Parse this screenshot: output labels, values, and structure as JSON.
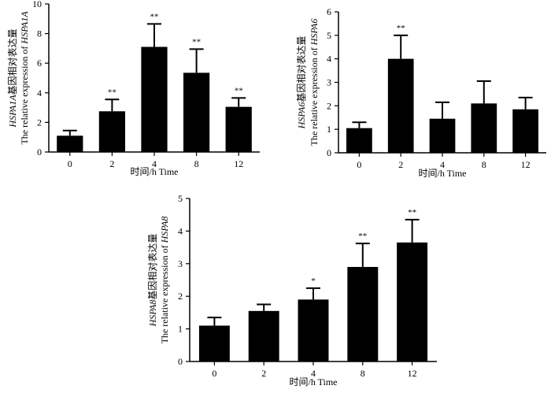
{
  "chart_data": [
    {
      "id": "hsp1a",
      "type": "bar",
      "categories": [
        "0",
        "2",
        "4",
        "8",
        "12"
      ],
      "values": [
        1.1,
        2.75,
        7.1,
        5.35,
        3.05
      ],
      "errors": [
        0.35,
        0.8,
        1.55,
        1.6,
        0.6
      ],
      "significance": [
        "",
        "**",
        "**",
        "**",
        "**"
      ],
      "ylim": [
        0,
        10
      ],
      "yticks": [
        "0",
        "2",
        "4",
        "6",
        "8",
        "10"
      ],
      "xlabel": "时间/h  Time",
      "ylabel_line1_italic": "HSPA1A",
      "ylabel_line1_rest": "基因相对表达量",
      "ylabel_line2_prefix": "The relative expression of ",
      "ylabel_line2_italic": "HSPA1A"
    },
    {
      "id": "hsp6",
      "type": "bar",
      "categories": [
        "0",
        "2",
        "4",
        "8",
        "12"
      ],
      "values": [
        1.05,
        4.0,
        1.45,
        2.1,
        1.85
      ],
      "errors": [
        0.25,
        1.0,
        0.7,
        0.95,
        0.5
      ],
      "significance": [
        "",
        "**",
        "",
        "",
        ""
      ],
      "ylim": [
        0,
        6
      ],
      "yticks": [
        "0",
        "1",
        "2",
        "3",
        "4",
        "5",
        "6"
      ],
      "xlabel": "时间/h  Time",
      "ylabel_line1_italic": "HSPA6",
      "ylabel_line1_rest": "基因相对表达量",
      "ylabel_line2_prefix": "The relative expression of ",
      "ylabel_line2_italic": "HSPA6"
    },
    {
      "id": "hsp8",
      "type": "bar",
      "categories": [
        "0",
        "2",
        "4",
        "8",
        "12"
      ],
      "values": [
        1.1,
        1.55,
        1.9,
        2.9,
        3.65
      ],
      "errors": [
        0.25,
        0.2,
        0.35,
        0.72,
        0.7
      ],
      "significance": [
        "",
        "",
        "*",
        "**",
        "**"
      ],
      "ylim": [
        0,
        5
      ],
      "yticks": [
        "0",
        "1",
        "2",
        "3",
        "4",
        "5"
      ],
      "xlabel": "时间/h  Time",
      "ylabel_line1_italic": "HSPA8",
      "ylabel_line1_rest": "基因相对表达量",
      "ylabel_line2_prefix": "The relative expression of ",
      "ylabel_line2_italic": "HSPA8"
    }
  ]
}
